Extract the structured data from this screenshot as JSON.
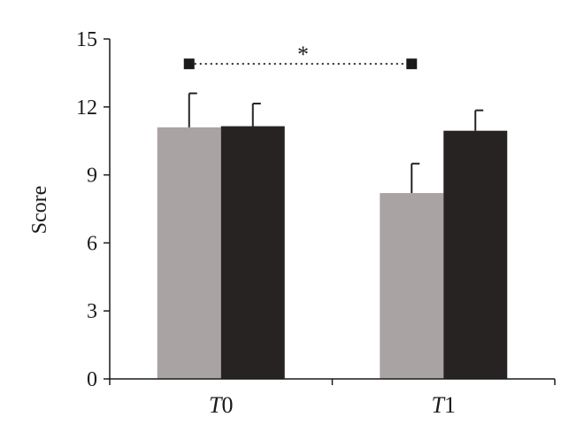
{
  "chart_data": {
    "type": "bar",
    "title": "",
    "xlabel": "",
    "ylabel": "Score",
    "ylim": [
      0,
      15
    ],
    "yticks": [
      0,
      3,
      6,
      9,
      12,
      15
    ],
    "categories": [
      {
        "italic": "T",
        "rest": "0"
      },
      {
        "italic": "T",
        "rest": "1"
      }
    ],
    "series": [
      {
        "color": "#aaa3a3",
        "values": [
          11.1,
          8.2
        ],
        "errors": [
          1.5,
          1.3
        ]
      },
      {
        "color": "#272323",
        "values": [
          11.15,
          10.95
        ],
        "errors": [
          1.0,
          0.9
        ]
      }
    ],
    "significance": {
      "symbol": "*",
      "from_category": 0,
      "to_category": 1,
      "series": 0,
      "y": 13.9
    },
    "grid": false,
    "legend": "none"
  }
}
